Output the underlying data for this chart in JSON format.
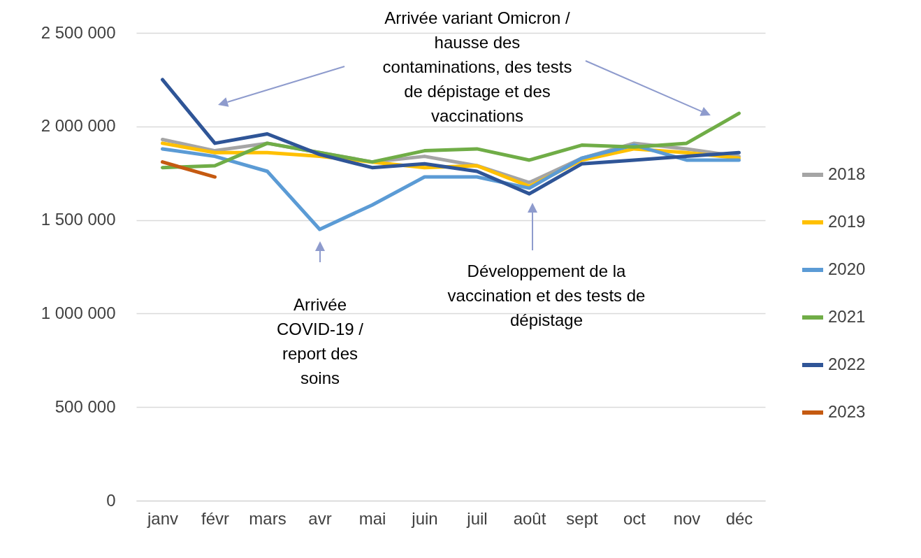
{
  "chart_data": {
    "type": "line",
    "categories": [
      "janv",
      "févr",
      "mars",
      "avr",
      "mai",
      "juin",
      "juil",
      "août",
      "sept",
      "oct",
      "nov",
      "déc"
    ],
    "series": [
      {
        "name": "2018",
        "color": "#a5a5a5",
        "values": [
          1930000,
          1870000,
          1910000,
          1860000,
          1810000,
          1840000,
          1790000,
          1700000,
          1830000,
          1910000,
          1880000,
          1840000
        ]
      },
      {
        "name": "2019",
        "color": "#ffc000",
        "values": [
          1910000,
          1860000,
          1860000,
          1840000,
          1810000,
          1780000,
          1790000,
          1680000,
          1820000,
          1880000,
          1860000,
          1830000
        ]
      },
      {
        "name": "2020",
        "color": "#5b9bd5",
        "values": [
          1880000,
          1840000,
          1760000,
          1450000,
          1580000,
          1730000,
          1730000,
          1670000,
          1830000,
          1900000,
          1820000,
          1820000
        ]
      },
      {
        "name": "2021",
        "color": "#70ad47",
        "values": [
          1780000,
          1790000,
          1910000,
          1860000,
          1810000,
          1870000,
          1880000,
          1820000,
          1900000,
          1890000,
          1910000,
          2070000
        ]
      },
      {
        "name": "2022",
        "color": "#2f5597",
        "values": [
          2250000,
          1910000,
          1960000,
          1850000,
          1780000,
          1800000,
          1760000,
          1640000,
          1800000,
          1820000,
          1840000,
          1860000
        ]
      },
      {
        "name": "2023",
        "color": "#c55a11",
        "values": [
          1810000,
          1730000,
          null,
          null,
          null,
          null,
          null,
          null,
          null,
          null,
          null,
          null
        ]
      }
    ],
    "ylim": [
      0,
      2500000
    ],
    "yticks": [
      {
        "value": 0,
        "label": "0"
      },
      {
        "value": 500000,
        "label": "500 000"
      },
      {
        "value": 1000000,
        "label": "1 000 000"
      },
      {
        "value": 1500000,
        "label": "1 500 000"
      },
      {
        "value": 2000000,
        "label": "2 000 000"
      },
      {
        "value": 2500000,
        "label": "2 500 000"
      }
    ],
    "grid": "y",
    "legend": "right",
    "marker": "none",
    "line_style": "solid",
    "annotations": [
      "Arrivée variant Omicron / hausse des contaminations, des tests de dépistage et des vaccinations",
      "Arrivée COVID-19 / report des soins",
      "Développement de la vaccination et des tests de dépistage"
    ]
  }
}
